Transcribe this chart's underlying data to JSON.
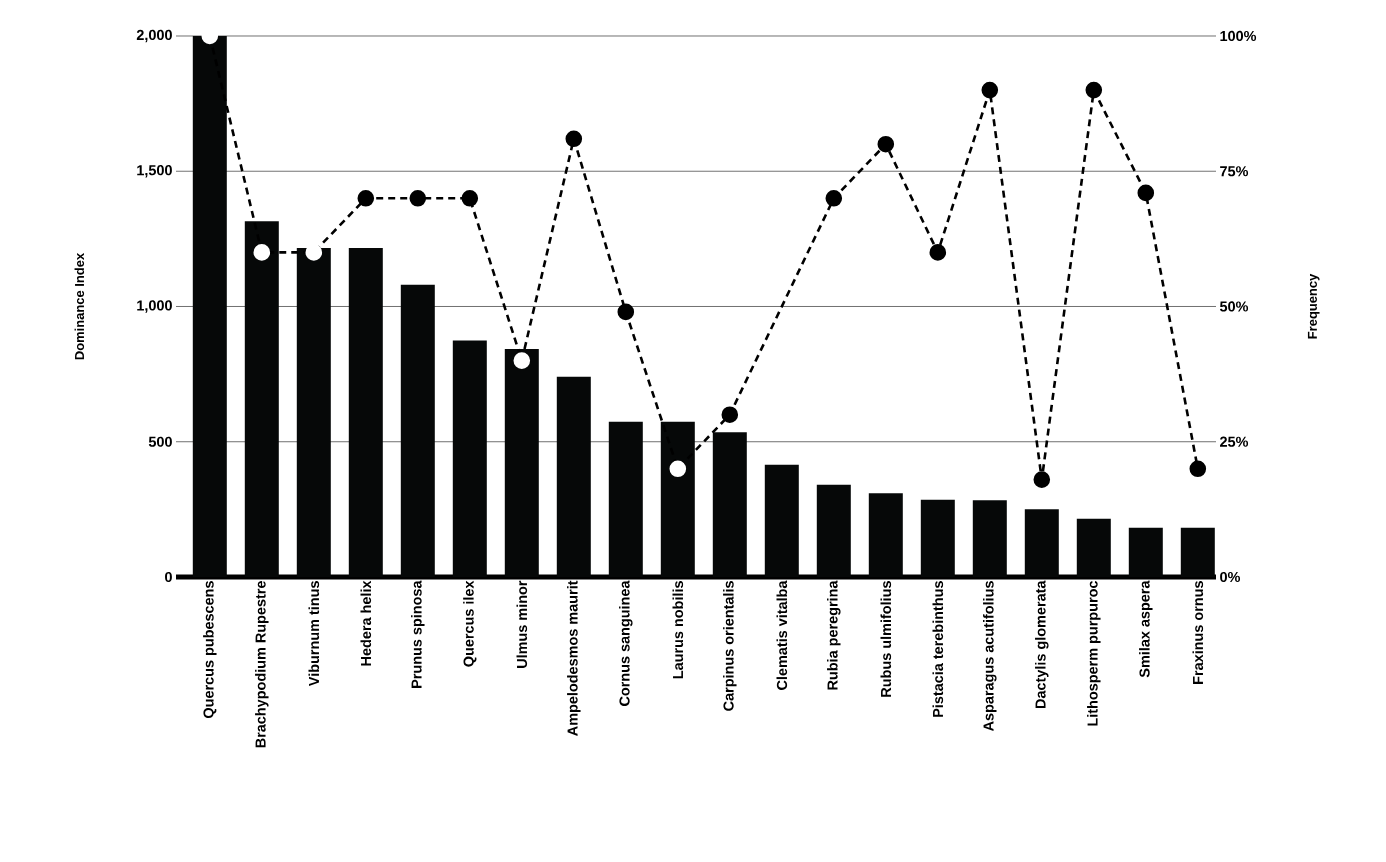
{
  "chart_data": {
    "type": "bar",
    "xlabel": null,
    "ylabel": "Dominance Index",
    "y2label": "Frequency",
    "categories": [
      "Quercus pubescens",
      "Brachypodium Rupestre",
      "Viburnum tinus",
      "Hedera helix",
      "Prunus spinosa",
      "Quercus ilex",
      "Ulmus minor",
      "Ampelodesmos maurit",
      "Cornus sanguinea",
      "Laurus nobilis",
      "Carpinus orientalis",
      "Clematis vitalba",
      "Rubia peregrina",
      "Rubus ulmifolius",
      "Pistacia terebinthus",
      "Asparagus acutifolius",
      "Dactylis glomerata",
      "Lithosperm purpuroc",
      "Smilax aspera",
      "Fraxinus ornus"
    ],
    "series": [
      {
        "color": "#060808",
        "values": [
          2000,
          1315,
          1216,
          1216,
          1080,
          874,
          843,
          740,
          574,
          574,
          535,
          415,
          341,
          310,
          286,
          284,
          250,
          215,
          182,
          182
        ]
      },
      {
        "type": "line",
        "axis": "y2",
        "color": "#000000",
        "marker": "circle",
        "line_style": "dashed",
        "values": [
          100,
          60,
          60,
          70,
          70,
          70,
          40,
          81,
          49,
          20,
          30,
          null,
          70,
          80,
          60,
          90,
          18,
          90,
          71,
          20
        ],
        "colors": [
          "#ffffff",
          "#ffffff",
          "#ffffff",
          "#000000",
          "#000000",
          "#000000",
          "#ffffff",
          "#000000",
          "#000000",
          "#ffffff",
          "#000000",
          "#000000",
          "#000000",
          "#000000",
          "#000000",
          "#000000",
          "#000000",
          "#000000",
          "#000000",
          "#000000"
        ]
      }
    ],
    "ylim": [
      0,
      2000
    ],
    "yticks": [
      {
        "value": 0,
        "label": "0"
      },
      {
        "value": 500,
        "label": "500"
      },
      {
        "value": 1000,
        "label": "1,000"
      },
      {
        "value": 1500,
        "label": "1,500"
      },
      {
        "value": 2000,
        "label": "2,000"
      }
    ],
    "y2lim": [
      0,
      100
    ],
    "y2ticks": [
      {
        "value": 0,
        "label": "0%"
      },
      {
        "value": 25,
        "label": "25%"
      },
      {
        "value": 50,
        "label": "50%"
      },
      {
        "value": 75,
        "label": "75%"
      },
      {
        "value": 100,
        "label": "100%"
      }
    ],
    "grid": "y"
  }
}
